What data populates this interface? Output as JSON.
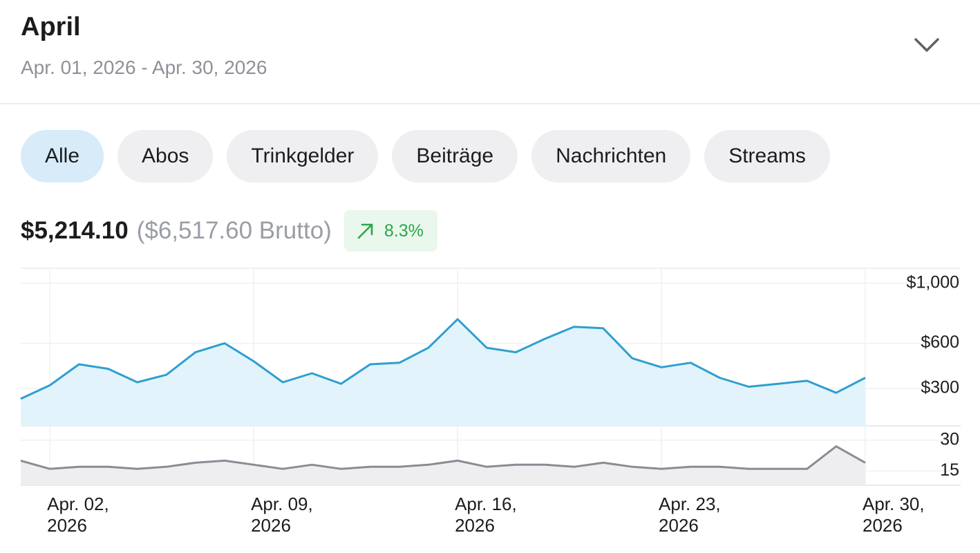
{
  "header": {
    "title": "April",
    "date_range": "Apr. 01, 2026 - Apr. 30, 2026"
  },
  "tabs": [
    {
      "label": "Alle",
      "selected": true
    },
    {
      "label": "Abos",
      "selected": false
    },
    {
      "label": "Trinkgelder",
      "selected": false
    },
    {
      "label": "Beiträge",
      "selected": false
    },
    {
      "label": "Nachrichten",
      "selected": false
    },
    {
      "label": "Streams",
      "selected": false
    }
  ],
  "summary": {
    "net": "$5,214.10",
    "gross": "($6,517.60 Brutto)",
    "change": "8.3%"
  },
  "chart_data": [
    {
      "type": "area",
      "categories": [
        null,
        "Apr. 02, 2026",
        null,
        null,
        null,
        null,
        null,
        null,
        "Apr. 09, 2026",
        null,
        null,
        null,
        null,
        null,
        null,
        "Apr. 16, 2026",
        null,
        null,
        null,
        null,
        null,
        null,
        "Apr. 23, 2026",
        null,
        null,
        null,
        null,
        null,
        null,
        "Apr. 30, 2026"
      ],
      "series": [
        {
          "color": "#2e9fd0",
          "fill": "#e2f3fc",
          "values": [
            230,
            320,
            460,
            430,
            340,
            390,
            540,
            600,
            480,
            340,
            400,
            330,
            460,
            470,
            570,
            760,
            570,
            540,
            630,
            710,
            700,
            500,
            440,
            470,
            370,
            310,
            330,
            350,
            270,
            370
          ]
        }
      ],
      "ylim": [
        50,
        1100
      ],
      "yticks": [
        {
          "value": 300,
          "label": "$300"
        },
        {
          "value": 600,
          "label": "$600"
        },
        {
          "value": 1000,
          "label": "$1,000"
        }
      ],
      "grid": true
    },
    {
      "type": "area",
      "series": [
        {
          "color": "#8b8b95",
          "fill": "#eeeef0",
          "values": [
            20,
            16,
            17,
            17,
            16,
            17,
            19,
            20,
            18,
            16,
            18,
            16,
            17,
            17,
            18,
            20,
            17,
            18,
            18,
            17,
            19,
            17,
            16,
            17,
            17,
            16,
            16,
            16,
            27,
            19
          ]
        }
      ],
      "ylim": [
        8,
        37
      ],
      "yticks": [
        15,
        30
      ],
      "grid": true
    }
  ]
}
